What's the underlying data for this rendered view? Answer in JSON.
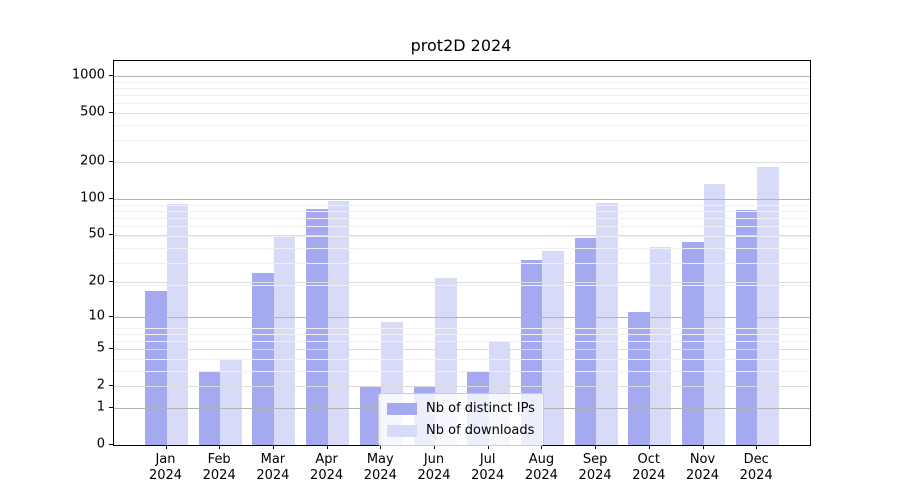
{
  "chart_data": {
    "type": "bar",
    "title": "prot2D 2024",
    "xlabel": "",
    "ylabel": "",
    "x_tick_line2": "2024",
    "categories": [
      "Jan",
      "Feb",
      "Mar",
      "Apr",
      "May",
      "Jun",
      "Jul",
      "Aug",
      "Sep",
      "Oct",
      "Nov",
      "Dec"
    ],
    "series": [
      {
        "name": "Nb of distinct IPs",
        "color": "#a5a9f0",
        "values": [
          17,
          3,
          24,
          82,
          2,
          2,
          3,
          31,
          47,
          11,
          44,
          80
        ]
      },
      {
        "name": "Nb of downloads",
        "color": "#d8dbf8",
        "values": [
          90,
          4,
          48,
          95,
          9,
          22,
          6,
          37,
          92,
          40,
          132,
          180
        ]
      }
    ],
    "yscale": "log10(value+1)",
    "ylim": [
      0,
      1320
    ],
    "yticks": [
      {
        "v": 1000,
        "label": "1000"
      },
      {
        "v": 500,
        "label": "500"
      },
      {
        "v": 200,
        "label": "200"
      },
      {
        "v": 100,
        "label": "100"
      },
      {
        "v": 50,
        "label": "50"
      },
      {
        "v": 20,
        "label": "20"
      },
      {
        "v": 10,
        "label": "10"
      },
      {
        "v": 5,
        "label": "5"
      },
      {
        "v": 2,
        "label": "2"
      },
      {
        "v": 1,
        "label": "1"
      },
      {
        "v": 0,
        "label": "0"
      }
    ],
    "grid": true,
    "legend_position": "lower center"
  }
}
